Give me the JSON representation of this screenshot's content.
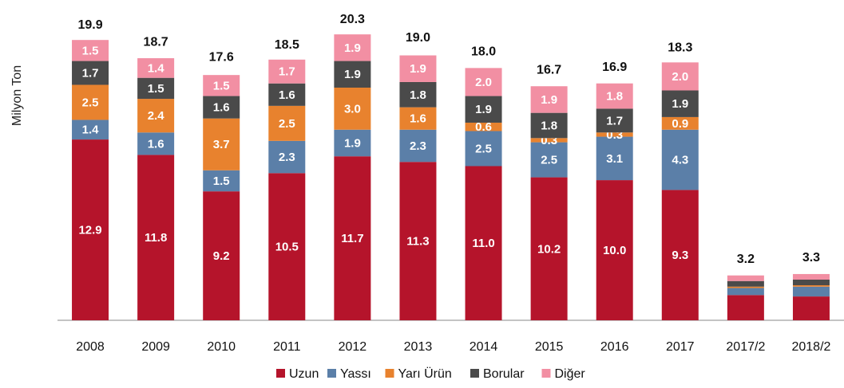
{
  "chart_data": {
    "type": "stacked_bar",
    "y_label": "Milyon Ton",
    "categories": [
      "2008",
      "2009",
      "2010",
      "2011",
      "2012",
      "2013",
      "2014",
      "2015",
      "2016",
      "2017",
      "2017/2",
      "2018/2"
    ],
    "series": [
      {
        "name": "Uzun",
        "color": "#b5142b",
        "values": [
          12.9,
          11.8,
          9.2,
          10.5,
          11.7,
          11.3,
          11.0,
          10.2,
          10.0,
          9.3,
          1.8,
          1.7
        ],
        "value_labels": [
          "12.9",
          "11.8",
          "9.2",
          "10.5",
          "11.7",
          "11.3",
          "11.0",
          "10.2",
          "10.0",
          "9.3",
          null,
          null
        ]
      },
      {
        "name": "Yassı",
        "color": "#5b7fa8",
        "values": [
          1.4,
          1.6,
          1.5,
          2.3,
          1.9,
          2.3,
          2.5,
          2.5,
          3.1,
          4.3,
          0.5,
          0.7
        ],
        "value_labels": [
          "1.4",
          "1.6",
          "1.5",
          "2.3",
          "1.9",
          "2.3",
          "2.5",
          "2.5",
          "3.1",
          "4.3",
          null,
          null
        ]
      },
      {
        "name": "Yarı Ürün",
        "color": "#e8822e",
        "values": [
          2.5,
          2.4,
          3.7,
          2.5,
          3.0,
          1.6,
          0.6,
          0.3,
          0.3,
          0.9,
          0.1,
          0.1
        ],
        "value_labels": [
          "2.5",
          "2.4",
          "3.7",
          "2.5",
          "3.0",
          "1.6",
          "0.6",
          "0.3",
          "0.3",
          "0.9",
          null,
          null
        ]
      },
      {
        "name": "Borular",
        "color": "#4a4a4a",
        "values": [
          1.7,
          1.5,
          1.6,
          1.6,
          1.9,
          1.8,
          1.9,
          1.8,
          1.7,
          1.9,
          0.4,
          0.4
        ],
        "value_labels": [
          "1.7",
          "1.5",
          "1.6",
          "1.6",
          "1.9",
          "1.8",
          "1.9",
          "1.8",
          "1.7",
          "1.9",
          null,
          null
        ]
      },
      {
        "name": "Diğer",
        "color": "#f28fa3",
        "values": [
          1.5,
          1.4,
          1.5,
          1.7,
          1.9,
          1.9,
          2.0,
          1.9,
          1.8,
          2.0,
          0.4,
          0.4
        ],
        "value_labels": [
          "1.5",
          "1.4",
          "1.5",
          "1.7",
          "1.9",
          "1.9",
          "2.0",
          "1.9",
          "1.8",
          "2.0",
          null,
          null
        ]
      }
    ],
    "totals": [
      19.9,
      18.7,
      17.6,
      18.5,
      20.3,
      19.0,
      18.0,
      16.7,
      16.9,
      18.3,
      3.2,
      3.3
    ],
    "total_labels": [
      "19.9",
      "18.7",
      "17.6",
      "18.5",
      "20.3",
      "19.0",
      "18.0",
      "16.7",
      "16.9",
      "18.3",
      "3.2",
      "3.3"
    ],
    "ylim": [
      0,
      22
    ]
  }
}
